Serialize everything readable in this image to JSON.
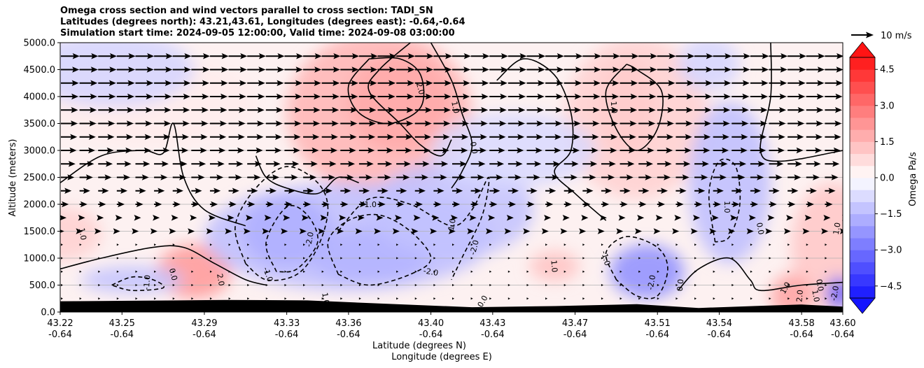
{
  "title_lines": [
    "Omega cross section and wind vectors parallel to cross section: TADI_SN",
    "Latitudes (degrees north): 43.21,43.61, Longitudes (degrees east): -0.64,-0.64",
    "Simulation start time: 2024-09-05 12:00:00, Valid time: 2024-09-08 03:00:00"
  ],
  "chart_data": {
    "type": "heatmap",
    "ylabel": "Altitude (meters)",
    "xlabel_lines": [
      "Latitude (degrees N)",
      "Longitude (degrees E)"
    ],
    "ylim": [
      0,
      5000
    ],
    "xlim": [
      43.22,
      43.6
    ],
    "y_ticks": [
      "0.0",
      "500.0",
      "1000.0",
      "1500.0",
      "2000.0",
      "2500.0",
      "3000.0",
      "3500.0",
      "4000.0",
      "4500.0",
      "5000.0"
    ],
    "x_ticks": [
      {
        "lat": "43.22",
        "lon": "-0.64"
      },
      {
        "lat": "43.25",
        "lon": "-0.64"
      },
      {
        "lat": "43.29",
        "lon": "-0.64"
      },
      {
        "lat": "43.33",
        "lon": "-0.64"
      },
      {
        "lat": "43.36",
        "lon": "-0.64"
      },
      {
        "lat": "43.40",
        "lon": "-0.64"
      },
      {
        "lat": "43.43",
        "lon": "-0.64"
      },
      {
        "lat": "43.47",
        "lon": "-0.64"
      },
      {
        "lat": "43.51",
        "lon": "-0.64"
      },
      {
        "lat": "43.54",
        "lon": "-0.64"
      },
      {
        "lat": "43.58",
        "lon": "-0.64"
      },
      {
        "lat": "43.60",
        "lon": "-0.64"
      }
    ],
    "colorbar": {
      "label": "Omega Pa/s",
      "range": [
        -5.0,
        5.0
      ],
      "ticks": [
        "4.5",
        "3.0",
        "1.5",
        "0.0",
        "−1.5",
        "−3.0",
        "−4.5"
      ],
      "extend": "both"
    },
    "omega_blobs": [
      {
        "x": 43.385,
        "y": 3900,
        "rx": 0.025,
        "ry": 900,
        "v": 3.0
      },
      {
        "x": 43.375,
        "y": 3700,
        "rx": 0.045,
        "ry": 1500,
        "v": 1.6
      },
      {
        "x": 43.495,
        "y": 3800,
        "rx": 0.014,
        "ry": 900,
        "v": 1.5
      },
      {
        "x": 43.5,
        "y": 3600,
        "rx": 0.035,
        "ry": 1500,
        "v": 1.0
      },
      {
        "x": 43.285,
        "y": 750,
        "rx": 0.018,
        "ry": 500,
        "v": 2.2
      },
      {
        "x": 43.46,
        "y": 850,
        "rx": 0.012,
        "ry": 280,
        "v": 1.3
      },
      {
        "x": 43.22,
        "y": 1450,
        "rx": 0.02,
        "ry": 500,
        "v": 1.0
      },
      {
        "x": 43.595,
        "y": 1200,
        "rx": 0.02,
        "ry": 1200,
        "v": 1.2
      },
      {
        "x": 43.575,
        "y": 300,
        "rx": 0.01,
        "ry": 400,
        "v": 2.0
      },
      {
        "x": 43.265,
        "y": 3900,
        "rx": 0.05,
        "ry": 800,
        "v": 0.4
      },
      {
        "x": 43.33,
        "y": 1500,
        "rx": 0.022,
        "ry": 650,
        "v": -3.3
      },
      {
        "x": 43.37,
        "y": 1050,
        "rx": 0.03,
        "ry": 500,
        "v": -2.8
      },
      {
        "x": 43.36,
        "y": 1400,
        "rx": 0.07,
        "ry": 1000,
        "v": -1.4
      },
      {
        "x": 43.41,
        "y": 1900,
        "rx": 0.04,
        "ry": 900,
        "v": -1.3
      },
      {
        "x": 43.505,
        "y": 750,
        "rx": 0.018,
        "ry": 500,
        "v": -2.4
      },
      {
        "x": 43.545,
        "y": 2400,
        "rx": 0.02,
        "ry": 1500,
        "v": -1.4
      },
      {
        "x": 43.44,
        "y": 3000,
        "rx": 0.04,
        "ry": 700,
        "v": -0.8
      },
      {
        "x": 43.245,
        "y": 4500,
        "rx": 0.04,
        "ry": 700,
        "v": -0.9
      },
      {
        "x": 43.255,
        "y": 600,
        "rx": 0.025,
        "ry": 250,
        "v": -1.3
      },
      {
        "x": 43.598,
        "y": 350,
        "rx": 0.006,
        "ry": 300,
        "v": -3.5
      },
      {
        "x": 43.535,
        "y": 4600,
        "rx": 0.015,
        "ry": 500,
        "v": -0.9
      }
    ],
    "contours": [
      {
        "style": "solid",
        "points": [
          [
            43.39,
            5000
          ],
          [
            43.375,
            4500
          ],
          [
            43.37,
            4100
          ],
          [
            43.385,
            3500
          ],
          [
            43.395,
            3100
          ],
          [
            43.405,
            2900
          ],
          [
            43.41,
            3200
          ]
        ]
      },
      {
        "style": "solid",
        "points": [
          [
            43.37,
            4700
          ],
          [
            43.36,
            4200
          ],
          [
            43.365,
            3700
          ],
          [
            43.38,
            3500
          ],
          [
            43.395,
            3800
          ],
          [
            43.395,
            4400
          ],
          [
            43.385,
            4700
          ],
          [
            43.37,
            4700
          ]
        ]
      },
      {
        "style": "solid",
        "points": [
          [
            43.4,
            5000
          ],
          [
            43.41,
            4300
          ],
          [
            43.415,
            3700
          ],
          [
            43.42,
            3100
          ],
          [
            43.415,
            2600
          ],
          [
            43.41,
            2300
          ]
        ]
      },
      {
        "style": "solid",
        "points": [
          [
            43.432,
            4300
          ],
          [
            43.445,
            4700
          ],
          [
            43.46,
            4400
          ],
          [
            43.468,
            3700
          ],
          [
            43.468,
            3000
          ],
          [
            43.46,
            2600
          ],
          [
            43.47,
            2200
          ],
          [
            43.485,
            1700
          ]
        ]
      },
      {
        "style": "solid",
        "points": [
          [
            43.495,
            4600
          ],
          [
            43.485,
            4100
          ],
          [
            43.49,
            3400
          ],
          [
            43.5,
            3000
          ],
          [
            43.51,
            3400
          ],
          [
            43.512,
            4100
          ],
          [
            43.5,
            4500
          ],
          [
            43.495,
            4600
          ]
        ]
      },
      {
        "style": "solid",
        "points": [
          [
            43.565,
            5000
          ],
          [
            43.565,
            4000
          ],
          [
            43.56,
            3000
          ],
          [
            43.57,
            2800
          ],
          [
            43.6,
            3000
          ]
        ]
      },
      {
        "style": "solid",
        "points": [
          [
            43.22,
            2400
          ],
          [
            43.24,
            2900
          ],
          [
            43.26,
            3000
          ],
          [
            43.27,
            2950
          ],
          [
            43.275,
            3500
          ],
          [
            43.28,
            2500
          ],
          [
            43.29,
            1900
          ],
          [
            43.31,
            1600
          ]
        ]
      },
      {
        "style": "solid",
        "points": [
          [
            43.22,
            800
          ],
          [
            43.24,
            1000
          ],
          [
            43.265,
            1200
          ],
          [
            43.28,
            1200
          ],
          [
            43.295,
            900
          ],
          [
            43.31,
            600
          ],
          [
            43.32,
            500
          ]
        ]
      },
      {
        "style": "solid",
        "points": [
          [
            43.315,
            2900
          ],
          [
            43.32,
            2500
          ],
          [
            43.33,
            2300
          ],
          [
            43.345,
            2200
          ],
          [
            43.355,
            2500
          ],
          [
            43.365,
            2400
          ]
        ]
      },
      {
        "style": "solid",
        "points": [
          [
            43.52,
            400
          ],
          [
            43.53,
            800
          ],
          [
            43.545,
            1000
          ],
          [
            43.555,
            600
          ],
          [
            43.56,
            400
          ],
          [
            43.58,
            500
          ],
          [
            43.6,
            550
          ]
        ]
      },
      {
        "style": "dashed",
        "points": [
          [
            43.31,
            900
          ],
          [
            43.305,
            1600
          ],
          [
            43.315,
            2300
          ],
          [
            43.33,
            2700
          ],
          [
            43.345,
            2400
          ],
          [
            43.35,
            1900
          ],
          [
            43.345,
            1200
          ],
          [
            43.335,
            700
          ],
          [
            43.32,
            600
          ],
          [
            43.31,
            900
          ]
        ]
      },
      {
        "style": "dashed",
        "points": [
          [
            43.325,
            750
          ],
          [
            43.32,
            1300
          ],
          [
            43.33,
            1950
          ],
          [
            43.34,
            1800
          ],
          [
            43.345,
            1300
          ],
          [
            43.335,
            800
          ],
          [
            43.325,
            750
          ]
        ]
      },
      {
        "style": "dashed",
        "points": [
          [
            43.355,
            700
          ],
          [
            43.35,
            1300
          ],
          [
            43.36,
            1700
          ],
          [
            43.375,
            1800
          ],
          [
            43.39,
            1500
          ],
          [
            43.4,
            1000
          ],
          [
            43.39,
            700
          ],
          [
            43.37,
            500
          ],
          [
            43.355,
            700
          ]
        ]
      },
      {
        "style": "dashed",
        "points": [
          [
            43.355,
            1500
          ],
          [
            43.37,
            2100
          ],
          [
            43.39,
            2000
          ],
          [
            43.41,
            1600
          ],
          [
            43.42,
            1900
          ],
          [
            43.428,
            2500
          ],
          [
            43.425,
            1800
          ],
          [
            43.415,
            1000
          ],
          [
            43.41,
            600
          ]
        ]
      },
      {
        "style": "dashed",
        "points": [
          [
            43.49,
            600
          ],
          [
            43.485,
            1100
          ],
          [
            43.495,
            1400
          ],
          [
            43.51,
            1200
          ],
          [
            43.515,
            800
          ],
          [
            43.51,
            300
          ],
          [
            43.5,
            300
          ],
          [
            43.49,
            600
          ]
        ]
      },
      {
        "style": "dashed",
        "points": [
          [
            43.538,
            1300
          ],
          [
            43.535,
            2200
          ],
          [
            43.54,
            2800
          ],
          [
            43.548,
            2700
          ],
          [
            43.55,
            2000
          ],
          [
            43.545,
            1400
          ],
          [
            43.538,
            1300
          ]
        ]
      },
      {
        "style": "dashed",
        "points": [
          [
            43.245,
            500
          ],
          [
            43.255,
            650
          ],
          [
            43.265,
            600
          ],
          [
            43.27,
            450
          ],
          [
            43.255,
            400
          ],
          [
            43.245,
            500
          ]
        ]
      }
    ],
    "contour_labels": [
      {
        "text": "2.0",
        "x": 43.395,
        "y": 4150,
        "rot": 75
      },
      {
        "text": "1.0",
        "x": 43.412,
        "y": 3800,
        "rot": 78
      },
      {
        "text": "0.0",
        "x": 43.421,
        "y": 3050,
        "rot": 80
      },
      {
        "text": "1.0",
        "x": 43.489,
        "y": 3800,
        "rot": 85
      },
      {
        "text": "-1.0",
        "x": 43.37,
        "y": 2000,
        "rot": 0
      },
      {
        "text": "-1.0",
        "x": 43.41,
        "y": 1600,
        "rot": -80
      },
      {
        "text": "-2.0",
        "x": 43.341,
        "y": 1350,
        "rot": -80
      },
      {
        "text": "-2.0",
        "x": 43.421,
        "y": 1200,
        "rot": -75
      },
      {
        "text": "-2.0",
        "x": 43.4,
        "y": 750,
        "rot": 10
      },
      {
        "text": "-1.0",
        "x": 43.321,
        "y": 700,
        "rot": 70
      },
      {
        "text": "1.0",
        "x": 43.231,
        "y": 1450,
        "rot": 80
      },
      {
        "text": "-1.0",
        "x": 43.262,
        "y": 550,
        "rot": -85
      },
      {
        "text": "0.0",
        "x": 43.275,
        "y": 700,
        "rot": 75
      },
      {
        "text": "2.0",
        "x": 43.298,
        "y": 600,
        "rot": 80
      },
      {
        "text": "1.0",
        "x": 43.46,
        "y": 850,
        "rot": 85
      },
      {
        "text": "-1.0",
        "x": 43.485,
        "y": 1000,
        "rot": 75
      },
      {
        "text": "-2.0",
        "x": 43.507,
        "y": 550,
        "rot": -80
      },
      {
        "text": "0.0",
        "x": 43.521,
        "y": 500,
        "rot": -85
      },
      {
        "text": "1.0",
        "x": 43.544,
        "y": 1950,
        "rot": 90
      },
      {
        "text": "0.0",
        "x": 43.56,
        "y": 1550,
        "rot": 80
      },
      {
        "text": "1.0",
        "x": 43.597,
        "y": 1550,
        "rot": -80
      },
      {
        "text": "1.0",
        "x": 43.572,
        "y": 450,
        "rot": -60
      },
      {
        "text": "2.0",
        "x": 43.579,
        "y": 300,
        "rot": -85
      },
      {
        "text": "0.0",
        "x": 43.589,
        "y": 500,
        "rot": 80
      },
      {
        "text": "1.0",
        "x": 43.587,
        "y": 300,
        "rot": 80
      },
      {
        "text": "-2.0",
        "x": 43.596,
        "y": 350,
        "rot": -80
      },
      {
        "text": "1.0",
        "x": 43.349,
        "y": 250,
        "rot": 80
      },
      {
        "text": "0.0",
        "x": 43.425,
        "y": 200,
        "rot": -60
      }
    ],
    "terrain_m": [
      [
        43.22,
        200
      ],
      [
        43.26,
        210
      ],
      [
        43.3,
        225
      ],
      [
        43.34,
        215
      ],
      [
        43.38,
        150
      ],
      [
        43.42,
        90
      ],
      [
        43.46,
        110
      ],
      [
        43.5,
        145
      ],
      [
        43.53,
        75
      ],
      [
        43.56,
        115
      ],
      [
        43.58,
        140
      ],
      [
        43.6,
        100
      ]
    ],
    "wind": {
      "reference": {
        "label": "10 m/s",
        "speed": 10
      },
      "vector_levels_m": [
        50,
        250,
        500,
        750,
        1000,
        1250,
        1500,
        1750,
        2000,
        2250,
        2500,
        2750,
        3000,
        3250,
        3500,
        3750,
        4000,
        4250,
        4500,
        4750
      ],
      "vector_x_count": 43,
      "profile": [
        [
          0,
          0.4
        ],
        [
          1000,
          0.8
        ],
        [
          1500,
          1.5
        ],
        [
          2000,
          3.5
        ],
        [
          2500,
          6.0
        ],
        [
          3000,
          7.0
        ],
        [
          3500,
          7.5
        ],
        [
          5000,
          8.5
        ]
      ]
    }
  },
  "colors": {
    "ground": "#000000",
    "contour": "#000000",
    "gridline": "#b0b0b0"
  }
}
